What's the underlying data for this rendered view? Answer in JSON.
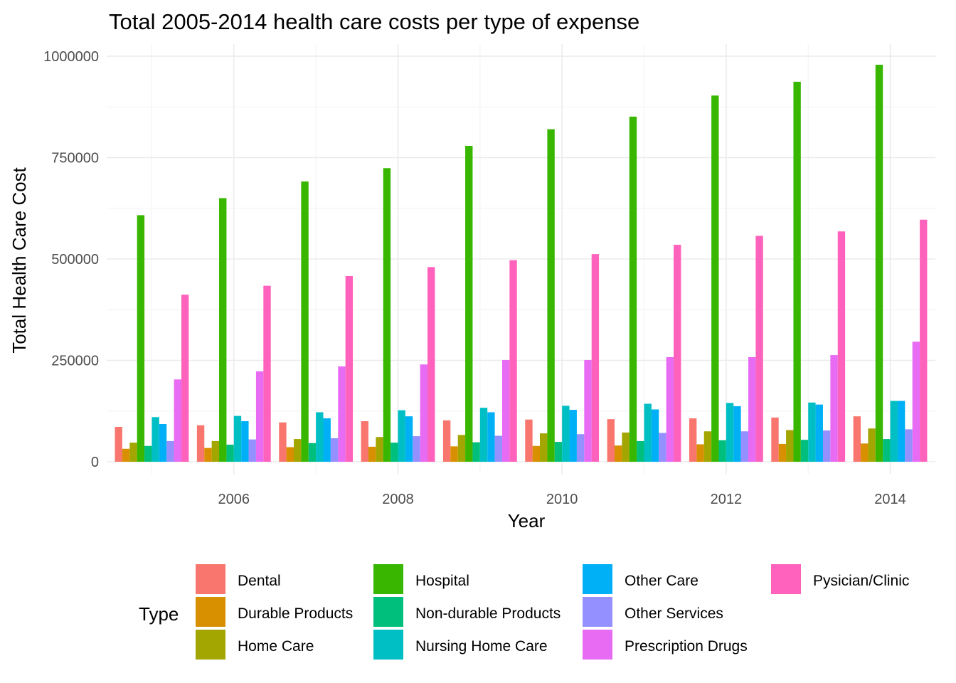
{
  "chart_data": {
    "type": "bar",
    "title": "Total 2005-2014 health care costs per type of expense",
    "xlabel": "Year",
    "ylabel": "Total Health Care Cost",
    "x_ticks": [
      2006,
      2008,
      2010,
      2012,
      2014
    ],
    "y_ticks": [
      0,
      250000,
      500000,
      750000,
      1000000
    ],
    "x_tick_labels": [
      "2006",
      "2008",
      "2010",
      "2012",
      "2014"
    ],
    "y_tick_labels": [
      "0",
      "250000",
      "500000",
      "750000",
      "1000000"
    ],
    "ylim": [
      0,
      1000000
    ],
    "xlim": [
      2004.45,
      2014.55
    ],
    "grid": true,
    "legend_title": "Type",
    "legend_position": "bottom",
    "categories": [
      "2005",
      "2006",
      "2007",
      "2008",
      "2009",
      "2010",
      "2011",
      "2012",
      "2013",
      "2014"
    ],
    "series": [
      {
        "name": "Dental",
        "color": "#F8766D",
        "values": [
          86000,
          90000,
          97000,
          100000,
          102000,
          104000,
          105000,
          107000,
          109000,
          112000
        ]
      },
      {
        "name": "Durable Products",
        "color": "#D89000",
        "values": [
          32000,
          34000,
          36000,
          37000,
          38000,
          39000,
          40000,
          43000,
          44000,
          45000
        ]
      },
      {
        "name": "Home Care",
        "color": "#A3A500",
        "values": [
          47000,
          51000,
          56000,
          61000,
          66000,
          70000,
          72000,
          75000,
          78000,
          82000
        ]
      },
      {
        "name": "Hospital",
        "color": "#39B600",
        "values": [
          608000,
          650000,
          691000,
          724000,
          779000,
          820000,
          851000,
          903000,
          937000,
          979000
        ]
      },
      {
        "name": "Non-durable Products",
        "color": "#00BF7D",
        "values": [
          39000,
          42000,
          46000,
          47000,
          48000,
          49000,
          51000,
          53000,
          54000,
          56000
        ]
      },
      {
        "name": "Nursing Home Care",
        "color": "#00BFC4",
        "values": [
          110000,
          113000,
          122000,
          127000,
          133000,
          138000,
          143000,
          145000,
          146000,
          150000
        ]
      },
      {
        "name": "Other Care",
        "color": "#00B0F6",
        "values": [
          93000,
          100000,
          107000,
          112000,
          122000,
          128000,
          129000,
          137000,
          141000,
          150000
        ]
      },
      {
        "name": "Other Services",
        "color": "#9590FF",
        "values": [
          51000,
          55000,
          58000,
          63000,
          64000,
          68000,
          71000,
          75000,
          77000,
          80000
        ]
      },
      {
        "name": "Prescription Drugs",
        "color": "#E76BF3",
        "values": [
          203000,
          223000,
          235000,
          240000,
          251000,
          251000,
          258000,
          258000,
          263000,
          296000
        ]
      },
      {
        "name": "Pysician/Clinic",
        "color": "#FF62BC",
        "values": [
          412000,
          434000,
          458000,
          480000,
          497000,
          512000,
          535000,
          557000,
          568000,
          597000
        ]
      }
    ]
  }
}
